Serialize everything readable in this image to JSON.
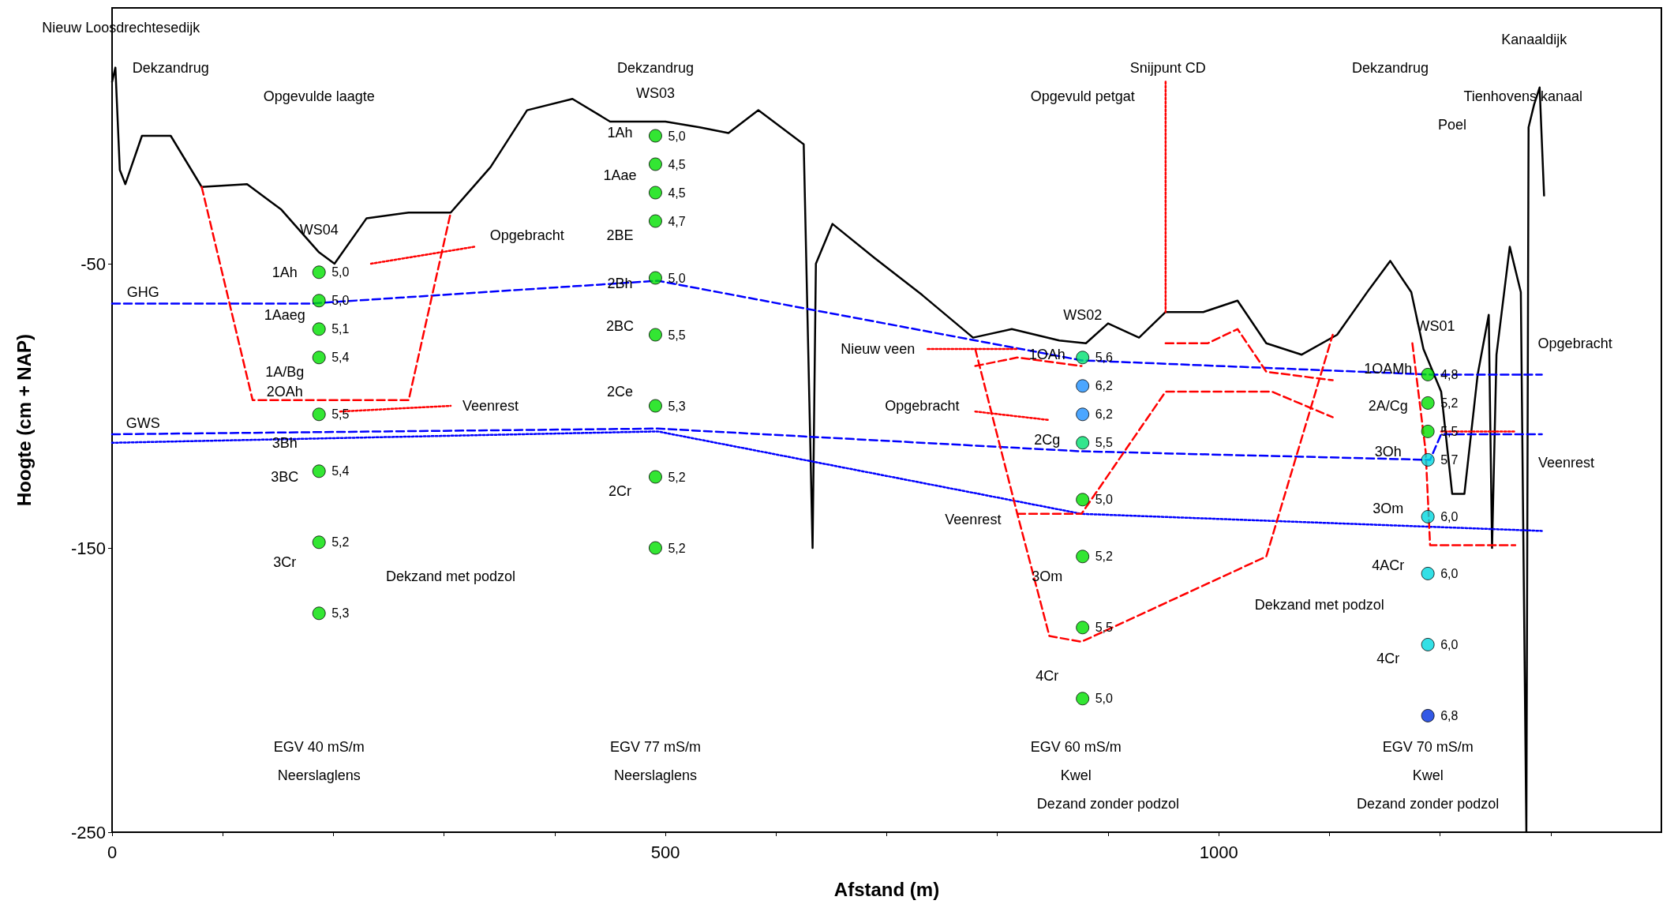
{
  "chart_data": {
    "type": "line",
    "xlabel": "Afstand (m)",
    "ylabel": "Hoogte (cm + NAP)",
    "xlim": [
      0,
      1400
    ],
    "ylim": [
      -250,
      40
    ],
    "xticks": [
      0,
      {
        "value": 100,
        "label": null
      },
      {
        "value": 200,
        "label": null
      },
      {
        "value": 300,
        "label": null
      },
      {
        "value": 400,
        "label": null
      },
      500,
      {
        "value": 600,
        "label": null
      },
      {
        "value": 700,
        "label": null
      },
      {
        "value": 800,
        "label": null
      },
      {
        "value": 900,
        "label": null
      },
      1000,
      {
        "value": 1100,
        "label": null
      },
      {
        "value": 1200,
        "label": null
      },
      {
        "value": 1300,
        "label": null
      }
    ],
    "yticks": [
      -250,
      -150,
      -50
    ],
    "grid": false,
    "marker": "none",
    "line_style": "solid",
    "series": [
      {
        "color": "#000000",
        "x": [
          0,
          3,
          7,
          12,
          27,
          53,
          81,
          122,
          153,
          187,
          201,
          230,
          268,
          306,
          342,
          375,
          416,
          450,
          500,
          531,
          557,
          584,
          625,
          633,
          636,
          651,
          689,
          732,
          778,
          813,
          856,
          880,
          900,
          928,
          952,
          986,
          1017,
          1043,
          1075,
          1107,
          1136,
          1155,
          1174,
          1185,
          1201,
          1211,
          1222,
          1234,
          1244,
          1247,
          1251,
          1263,
          1273,
          1278,
          1280,
          1285,
          1290,
          1294
        ],
        "values": [
          14,
          19,
          -17,
          -22,
          -5,
          -5,
          -23,
          -22,
          -31,
          -46,
          -50,
          -34,
          -32,
          -32,
          -16,
          4,
          8,
          0,
          0,
          -2,
          -4,
          4,
          -8,
          -150,
          -50,
          -36,
          -48,
          -61,
          -76,
          -73,
          -77,
          -78,
          -71,
          -76,
          -67,
          -67,
          -63,
          -78,
          -82,
          -75,
          -59,
          -49,
          -60,
          -80,
          -95,
          -131,
          -131,
          -89,
          -68,
          -150,
          -82,
          -44,
          -60,
          -250,
          -2,
          6,
          12,
          -26
        ]
      },
      {
        "color": "#0000ff",
        "line_style": "dashed",
        "x": [
          0,
          180,
          493,
          876,
          1191,
          1292
        ],
        "values": [
          -64,
          -64,
          -56,
          -84,
          -89,
          -89
        ]
      },
      {
        "color": "#0000ff",
        "line_style": "dashed",
        "x": [
          0,
          493,
          876,
          1191,
          1201,
          1292
        ],
        "values": [
          -110,
          -108,
          -116,
          -119,
          -110,
          -110
        ]
      },
      {
        "color": "#0000ff",
        "line_style": "dotted",
        "x": [
          0,
          493,
          876,
          1292
        ],
        "values": [
          -113,
          -109,
          -138,
          -144
        ]
      },
      {
        "color": "#ff0000",
        "line_style": "dashed",
        "x": [
          81,
          127,
          268,
          306
        ],
        "values": [
          -23,
          -98,
          -98,
          -32
        ]
      },
      {
        "color": "#ff0000",
        "line_style": "dotted",
        "x": [
          234,
          328
        ],
        "values": [
          -50,
          -44
        ]
      },
      {
        "color": "#ff0000",
        "line_style": "dotted",
        "x": [
          206,
          306
        ],
        "values": [
          -102,
          -100
        ]
      },
      {
        "color": "#ff0000",
        "line_style": "dashed",
        "x": [
          780,
          818,
          847,
          876,
          1043,
          1103
        ],
        "values": [
          -80,
          -138,
          -181,
          -183,
          -153,
          -75
        ]
      },
      {
        "color": "#ff0000",
        "line_style": "dashed",
        "x": [
          818,
          876,
          952,
          1048,
          1103
        ],
        "values": [
          -138,
          -138,
          -95,
          -95,
          -104
        ]
      },
      {
        "color": "#ff0000",
        "line_style": "dashed",
        "x": [
          952,
          990,
          1017,
          1043,
          1103
        ],
        "values": [
          -78,
          -78,
          -73,
          -88,
          -91
        ]
      },
      {
        "color": "#ff0000",
        "line_style": "dashed",
        "x": [
          780,
          818,
          876
        ],
        "values": [
          -86,
          -83,
          -86
        ]
      },
      {
        "color": "#ff0000",
        "line_style": "dotted",
        "x": [
          737,
          818
        ],
        "values": [
          -80,
          -80
        ]
      },
      {
        "color": "#ff0000",
        "line_style": "dotted",
        "x": [
          780,
          847
        ],
        "values": [
          -102,
          -105
        ]
      },
      {
        "color": "#ff0000",
        "line_style": "dotted",
        "x": [
          952,
          952
        ],
        "values": [
          14,
          -67
        ]
      },
      {
        "color": "#ff0000",
        "line_style": "dashed",
        "x": [
          1175,
          1187,
          1191,
          1268
        ],
        "values": [
          -78,
          -116,
          -149,
          -149
        ]
      },
      {
        "color": "#ff0000",
        "line_style": "dotted",
        "x": [
          1201,
          1268
        ],
        "values": [
          -109,
          -109
        ]
      },
      {
        "type": "scatter",
        "marker": "circle",
        "x": [
          187,
          187,
          187,
          187,
          187,
          187,
          187,
          187
        ],
        "values": [
          -53,
          -63,
          -73,
          -83,
          -103,
          -123,
          -148,
          -173
        ],
        "colors": [
          "#00e000",
          "#00e000",
          "#00e000",
          "#00e000",
          "#00e000",
          "#00e000",
          "#00e000",
          "#00e000"
        ]
      },
      {
        "type": "scatter",
        "marker": "circle",
        "x": [
          491,
          491,
          491,
          491,
          491,
          491,
          491,
          491,
          491
        ],
        "values": [
          -5,
          -15,
          -25,
          -35,
          -55,
          -75,
          -100,
          -125,
          -150
        ],
        "colors": [
          "#00e000",
          "#00e000",
          "#00e000",
          "#00e000",
          "#00e000",
          "#00e000",
          "#00e000",
          "#00e000",
          "#00e000"
        ]
      },
      {
        "type": "scatter",
        "marker": "circle",
        "x": [
          877,
          877,
          877,
          877,
          877,
          877,
          877,
          877
        ],
        "values": [
          -83,
          -93,
          -103,
          -113,
          -133,
          -153,
          -178,
          -203
        ],
        "colors": [
          "#00e070",
          "#1e90ff",
          "#1e90ff",
          "#00e070",
          "#00e000",
          "#00e000",
          "#00e000",
          "#00e000"
        ]
      },
      {
        "type": "scatter",
        "marker": "circle",
        "x": [
          1189,
          1189,
          1189,
          1189,
          1189,
          1189,
          1189,
          1189
        ],
        "values": [
          -89,
          -99,
          -109,
          -119,
          -139,
          -159,
          -184,
          -209
        ],
        "colors": [
          "#00e000",
          "#00e000",
          "#00e000",
          "#00d8e0",
          "#00d8e0",
          "#00d8e0",
          "#00d8e0",
          "#0030e0"
        ]
      }
    ],
    "annotations": [
      "Nieuw Loosdrechtesedijk",
      "Dekzandrug",
      "Opgevulde laagte",
      "WS04",
      "Opgebracht",
      "Veenrest",
      "Dekzand met podzol",
      "EGV 40 mS/m",
      "Neerslaglens",
      "Dekzandrug",
      "WS03",
      "EGV 77 mS/m",
      "Neerslaglens",
      "Snijpunt CD",
      "Opgevuld petgat",
      "WS02",
      "Nieuw veen",
      "Opgebracht",
      "Veenrest",
      "Dekzand met podzol",
      "EGV 60 mS/m",
      "Kwel",
      "Dezand zonder podzol",
      "Dekzandrug",
      "Kanaaldijk",
      "Tienhovens kanaal",
      "Poel",
      "WS01",
      "Opgebracht",
      "Veenrest",
      "EGV 70 mS/m",
      "Kwel",
      "Dezand zonder podzol",
      "GHG",
      "GWS",
      "1Ah",
      "1Aaeg",
      "1A/Bg",
      "2OAh",
      "3Bh",
      "3BC",
      "3Cr",
      "1Ah",
      "1Aae",
      "2BE",
      "2Bh",
      "2BC",
      "2Ce",
      "2Cr",
      "1OAh",
      "2Cg",
      "3Om",
      "4Cr",
      "1OAMh",
      "2A/Cg",
      "3Oh",
      "3Om",
      "4ACr",
      "4Cr",
      {
        "text": "5,0",
        "x": 187,
        "y": -53
      },
      {
        "text": "5,0",
        "x": 187,
        "y": -63
      },
      {
        "text": "5,1",
        "x": 187,
        "y": -73
      },
      {
        "text": "5,4",
        "x": 187,
        "y": -83
      },
      {
        "text": "5,5",
        "x": 187,
        "y": -103
      },
      {
        "text": "5,4",
        "x": 187,
        "y": -123
      },
      {
        "text": "5,2",
        "x": 187,
        "y": -148
      },
      {
        "text": "5,3",
        "x": 187,
        "y": -173
      },
      {
        "text": "5,0",
        "x": 491,
        "y": -5
      },
      {
        "text": "4,5",
        "x": 491,
        "y": -15
      },
      {
        "text": "4,5",
        "x": 491,
        "y": -25
      },
      {
        "text": "4,7",
        "x": 491,
        "y": -35
      },
      {
        "text": "5,0",
        "x": 491,
        "y": -55
      },
      {
        "text": "5,5",
        "x": 491,
        "y": -75
      },
      {
        "text": "5,3",
        "x": 491,
        "y": -100
      },
      {
        "text": "5,2",
        "x": 491,
        "y": -125
      },
      {
        "text": "5,2",
        "x": 491,
        "y": -150
      },
      {
        "text": "5,6",
        "x": 877,
        "y": -83
      },
      {
        "text": "6,2",
        "x": 877,
        "y": -93
      },
      {
        "text": "6,2",
        "x": 877,
        "y": -103
      },
      {
        "text": "5,5",
        "x": 877,
        "y": -113
      },
      {
        "text": "5,0",
        "x": 877,
        "y": -133
      },
      {
        "text": "5,2",
        "x": 877,
        "y": -153
      },
      {
        "text": "5,5",
        "x": 877,
        "y": -178
      },
      {
        "text": "5,0",
        "x": 877,
        "y": -203
      },
      {
        "text": "4,8",
        "x": 1189,
        "y": -89
      },
      {
        "text": "5,2",
        "x": 1189,
        "y": -99
      },
      {
        "text": "5,5",
        "x": 1189,
        "y": -109
      },
      {
        "text": "5,7",
        "x": 1189,
        "y": -119
      },
      {
        "text": "6,0",
        "x": 1189,
        "y": -139
      },
      {
        "text": "6,0",
        "x": 1189,
        "y": -159
      },
      {
        "text": "6,0",
        "x": 1189,
        "y": -184
      },
      {
        "text": "6,8",
        "x": 1189,
        "y": -209
      }
    ]
  }
}
